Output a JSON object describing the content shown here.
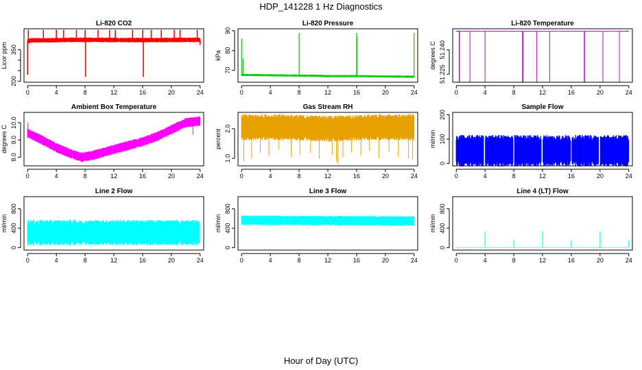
{
  "figure": {
    "title": "HDP_141228  1 Hz Diagnostics",
    "xlabel": "Hour of Day (UTC)"
  },
  "chart_data": [
    {
      "type": "line",
      "title": "Li-820 CO2",
      "ylabel": "Licor ppm",
      "color": "#ff0000",
      "x_ticks": [
        0,
        4,
        8,
        12,
        16,
        20,
        24
      ],
      "y_ticks": [
        200,
        250,
        300,
        350
      ],
      "y_tick_labels": [
        "200",
        "",
        "",
        "350"
      ],
      "xlim": [
        -0.5,
        24.5
      ],
      "ylim": [
        195,
        450
      ],
      "band": [
        [
          0,
          390
        ],
        [
          0.5,
          395
        ],
        [
          3,
          395
        ],
        [
          6,
          397
        ],
        [
          10,
          397
        ],
        [
          14,
          396
        ],
        [
          18,
          396
        ],
        [
          22,
          397
        ],
        [
          24,
          397
        ]
      ],
      "band_half_width": 9,
      "spikes": [
        [
          0,
          230
        ],
        [
          0.1,
          445
        ],
        [
          2.2,
          445
        ],
        [
          4,
          445
        ],
        [
          5,
          445
        ],
        [
          6.8,
          445
        ],
        [
          8,
          445
        ],
        [
          8.05,
          220
        ],
        [
          9.8,
          445
        ],
        [
          11.4,
          445
        ],
        [
          12.2,
          445
        ],
        [
          14.6,
          445
        ],
        [
          16,
          445
        ],
        [
          16.1,
          220
        ],
        [
          17.2,
          445
        ],
        [
          18.6,
          445
        ],
        [
          20.4,
          445
        ],
        [
          21.2,
          445
        ],
        [
          23.6,
          445
        ],
        [
          24,
          372
        ]
      ],
      "spike_line_width": 1.6
    },
    {
      "type": "line",
      "title": "Li-820 Pressure",
      "ylabel": "kPa",
      "color": "#00cc00",
      "x_ticks": [
        0,
        4,
        8,
        12,
        16,
        20,
        24
      ],
      "y_ticks": [
        70,
        80,
        90
      ],
      "y_tick_labels": [
        "70",
        "80",
        "90"
      ],
      "xlim": [
        -0.5,
        24.5
      ],
      "ylim": [
        64,
        91
      ],
      "band": [
        [
          0,
          67.7
        ],
        [
          2,
          67.6
        ],
        [
          6,
          67.4
        ],
        [
          10,
          67.3
        ],
        [
          12,
          67.1
        ],
        [
          16,
          67.1
        ],
        [
          20,
          66.9
        ],
        [
          24,
          66.8
        ]
      ],
      "band_half_width": 0.45,
      "spikes": [
        [
          0,
          86
        ],
        [
          0.2,
          76
        ],
        [
          8,
          89
        ],
        [
          16,
          89
        ],
        [
          16.05,
          87
        ],
        [
          24,
          89
        ]
      ],
      "spike_line_width": 1.2
    },
    {
      "type": "line",
      "title": "Li-820 Temperature",
      "ylabel": "degrees C",
      "color": "#cc00cc",
      "x_ticks": [
        0,
        4,
        8,
        12,
        16,
        20,
        24
      ],
      "y_ticks": [
        51.225,
        51.24
      ],
      "y_tick_labels": [
        "51.225",
        "51.240"
      ],
      "xlim": [
        -0.5,
        24.5
      ],
      "ylim": [
        51.22,
        51.253
      ],
      "band": [
        [
          0,
          51.2515
        ],
        [
          24,
          51.2515
        ]
      ],
      "band_half_width": 0.0002,
      "spikes": [
        [
          0.4,
          51.22
        ],
        [
          0.45,
          51.22
        ],
        [
          1.9,
          51.22
        ],
        [
          4,
          51.22
        ],
        [
          9.2,
          51.22
        ],
        [
          9.3,
          51.22
        ],
        [
          11.2,
          51.22
        ],
        [
          13,
          51.22
        ],
        [
          17.8,
          51.22
        ],
        [
          17.85,
          51.22
        ],
        [
          20.4,
          51.22
        ],
        [
          22.7,
          51.22
        ]
      ],
      "spike_line_width": 1
    },
    {
      "type": "line",
      "title": "Ambient Box Temperature",
      "ylabel": "degrees C",
      "color": "#ff00ff",
      "x_ticks": [
        0,
        4,
        8,
        12,
        16,
        20,
        24
      ],
      "y_ticks": [
        8.0,
        9.0,
        10.0
      ],
      "y_tick_labels": [
        "8.0",
        "9.0",
        "10.0"
      ],
      "xlim": [
        -0.5,
        24.5
      ],
      "ylim": [
        7.5,
        10.6
      ],
      "band": [
        [
          0,
          9.4
        ],
        [
          2,
          9.0
        ],
        [
          4,
          8.55
        ],
        [
          6,
          8.2
        ],
        [
          7.5,
          8.0
        ],
        [
          9,
          8.1
        ],
        [
          12,
          8.45
        ],
        [
          16,
          8.9
        ],
        [
          18,
          9.2
        ],
        [
          20,
          9.6
        ],
        [
          22,
          10.0
        ],
        [
          24,
          10.1
        ]
      ],
      "band_half_width": 0.22,
      "spikes": [
        [
          7.5,
          7.75
        ],
        [
          7.7,
          7.7
        ],
        [
          23,
          9.3
        ],
        [
          0,
          10.0
        ]
      ],
      "spike_line_width": 1
    },
    {
      "type": "line",
      "title": "Gas Stream RH",
      "ylabel": "percent",
      "color": "#e6a000",
      "x_ticks": [
        0,
        4,
        8,
        12,
        16,
        20,
        24
      ],
      "y_ticks": [
        1.0,
        2.0
      ],
      "y_tick_labels": [
        "1.0",
        "2.0"
      ],
      "xlim": [
        -0.5,
        24.5
      ],
      "ylim": [
        0.75,
        2.55
      ],
      "band": [
        [
          0,
          2.05
        ],
        [
          6,
          2.05
        ],
        [
          12,
          2.0
        ],
        [
          18,
          2.05
        ],
        [
          24,
          2.05
        ]
      ],
      "band_half_width": 0.35,
      "spikes": [
        [
          0.3,
          0.9
        ],
        [
          1.4,
          1.0
        ],
        [
          2.6,
          1.2
        ],
        [
          3.8,
          1.1
        ],
        [
          5.2,
          1.3
        ],
        [
          6.9,
          1.05
        ],
        [
          8.1,
          1.1
        ],
        [
          9.6,
          1.2
        ],
        [
          10.8,
          1.0
        ],
        [
          12.6,
          1.1
        ],
        [
          13.2,
          0.9
        ],
        [
          13.4,
          0.82
        ],
        [
          14.1,
          1.05
        ],
        [
          15.3,
          1.2
        ],
        [
          16.6,
          1.1
        ],
        [
          17.8,
          1.25
        ],
        [
          19.1,
          1.0
        ],
        [
          20.5,
          1.2
        ],
        [
          21.8,
          1.05
        ],
        [
          23.2,
          1.0
        ],
        [
          23.8,
          0.95
        ],
        [
          21.4,
          2.45
        ],
        [
          18.2,
          2.35
        ]
      ],
      "spike_line_width": 1
    },
    {
      "type": "line",
      "title": "Sample Flow",
      "ylabel": "ml/min",
      "color": "#0000ff",
      "x_ticks": [
        0,
        4,
        8,
        12,
        16,
        20,
        24
      ],
      "y_ticks": [
        0,
        100,
        200
      ],
      "y_tick_labels": [
        "0",
        "100",
        "200"
      ],
      "xlim": [
        -0.5,
        24.5
      ],
      "ylim": [
        -10,
        210
      ],
      "band": [
        [
          0,
          52
        ],
        [
          24,
          52
        ]
      ],
      "band_half_width": 52,
      "gaps": [
        3.8,
        4.05,
        7.9,
        8.1,
        11.8,
        12.05,
        15.9,
        16.1,
        19.8,
        20.05
      ],
      "spikes": [],
      "spike_line_width": 1
    },
    {
      "type": "line",
      "title": "Line 2 Flow",
      "ylabel": "ml/min",
      "color": "#00ffff",
      "x_ticks": [
        0,
        4,
        8,
        12,
        16,
        20,
        24
      ],
      "y_ticks": [
        0,
        400,
        800
      ],
      "y_tick_labels": [
        "0",
        "400",
        "800"
      ],
      "xlim": [
        -0.5,
        24.5
      ],
      "ylim": [
        -50,
        1050
      ],
      "band": [
        [
          0,
          310
        ],
        [
          24,
          310
        ]
      ],
      "band_half_width": 210,
      "gaps": [
        3.95,
        4.02,
        7.95,
        8.02,
        11.95,
        12.02,
        15.95,
        16.02,
        19.95,
        20.02,
        23.9,
        23.98
      ],
      "spikes": [],
      "spike_line_width": 1
    },
    {
      "type": "line",
      "title": "Line 3 Flow",
      "ylabel": "ml/min",
      "color": "#00ffff",
      "x_ticks": [
        0,
        4,
        8,
        12,
        16,
        20,
        24
      ],
      "y_ticks": [
        0,
        400,
        800
      ],
      "y_tick_labels": [
        "0",
        "400",
        "800"
      ],
      "xlim": [
        -0.5,
        24.5
      ],
      "ylim": [
        -50,
        1050
      ],
      "band": [
        [
          0,
          565
        ],
        [
          24,
          550
        ]
      ],
      "band_half_width": 80,
      "spikes": [],
      "spike_line_width": 1
    },
    {
      "type": "line",
      "title": "Line 4 (LT) Flow",
      "ylabel": "ml/min",
      "color": "#00ffff",
      "x_ticks": [
        0,
        4,
        8,
        12,
        16,
        20,
        24
      ],
      "y_ticks": [
        0,
        400,
        800
      ],
      "y_tick_labels": [
        "0",
        "400",
        "800"
      ],
      "xlim": [
        -0.5,
        24.5
      ],
      "ylim": [
        -50,
        1050
      ],
      "band": [
        [
          0,
          5
        ],
        [
          24,
          5
        ]
      ],
      "band_half_width": 4,
      "spikes": [
        [
          4,
          330
        ],
        [
          8,
          160
        ],
        [
          12,
          330
        ],
        [
          16,
          150
        ],
        [
          20,
          330
        ],
        [
          24,
          150
        ]
      ],
      "spike_line_width": 1.2
    }
  ]
}
